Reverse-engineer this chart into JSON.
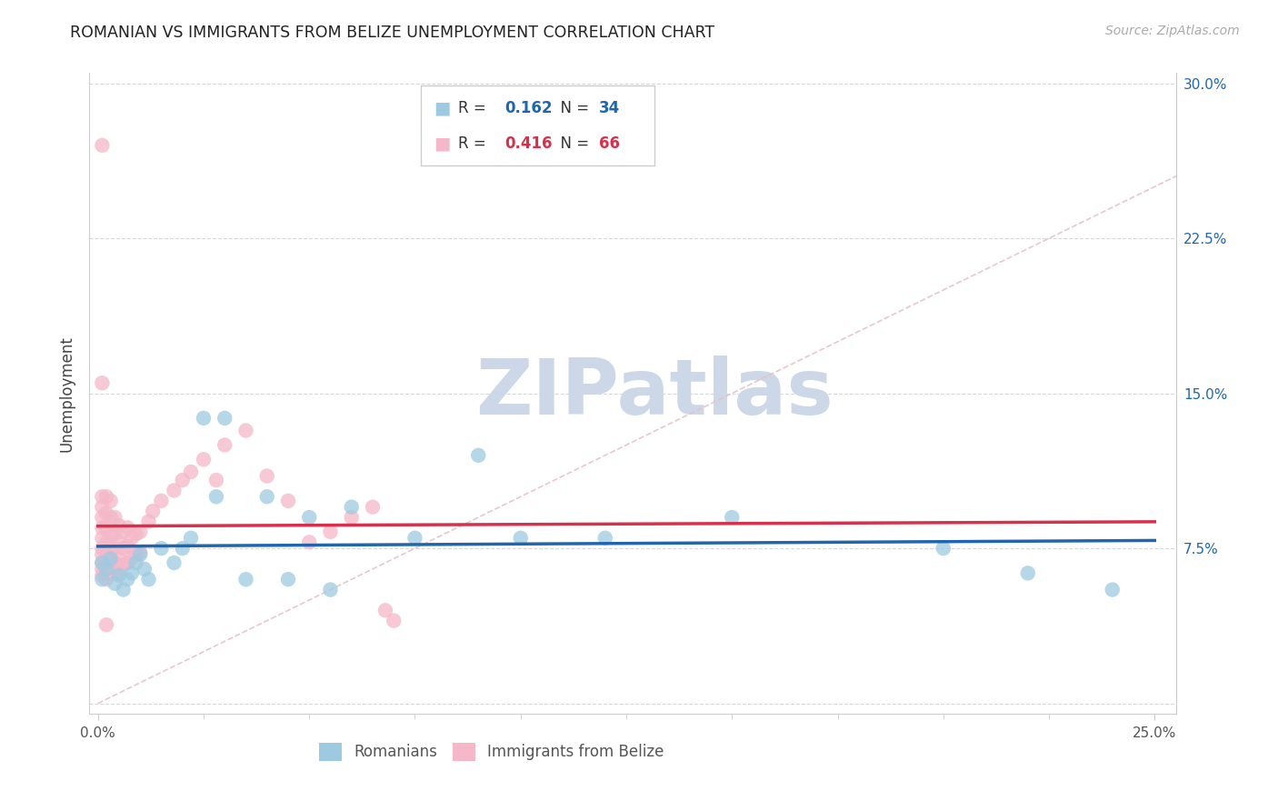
{
  "title": "ROMANIAN VS IMMIGRANTS FROM BELIZE UNEMPLOYMENT CORRELATION CHART",
  "source": "Source: ZipAtlas.com",
  "xlim": [
    -0.002,
    0.255
  ],
  "ylim": [
    -0.005,
    0.305
  ],
  "ylabel_ticks": [
    0.0,
    0.075,
    0.15,
    0.225,
    0.3
  ],
  "ylabel_labels": [
    "",
    "7.5%",
    "15.0%",
    "22.5%",
    "30.0%"
  ],
  "xtick_positions": [
    0.0,
    0.25
  ],
  "xtick_labels": [
    "0.0%",
    "25.0%"
  ],
  "legend_label1": "Romanians",
  "legend_label2": "Immigrants from Belize",
  "R1": "0.162",
  "N1": "34",
  "R2": "0.416",
  "N2": "66",
  "blue_scatter": "#9ecae1",
  "pink_scatter": "#f4b8c8",
  "blue_line": "#2166ac",
  "pink_line": "#d6304a",
  "diag_color": "#e8c0c8",
  "watermark_color": "#ccd8e8",
  "bg_color": "#ffffff",
  "grid_color": "#d8d8d8",
  "spine_color": "#cccccc",
  "title_color": "#222222",
  "source_color": "#aaaaaa",
  "tick_label_color": "#2166ac",
  "ylabel_text": "Unemployment",
  "romanians_x": [
    0.001,
    0.001,
    0.002,
    0.003,
    0.004,
    0.005,
    0.006,
    0.007,
    0.008,
    0.009,
    0.01,
    0.011,
    0.012,
    0.015,
    0.018,
    0.02,
    0.022,
    0.025,
    0.028,
    0.03,
    0.035,
    0.04,
    0.045,
    0.05,
    0.055,
    0.06,
    0.075,
    0.09,
    0.1,
    0.12,
    0.15,
    0.2,
    0.22,
    0.24
  ],
  "romanians_y": [
    0.068,
    0.06,
    0.065,
    0.07,
    0.058,
    0.062,
    0.055,
    0.06,
    0.063,
    0.068,
    0.072,
    0.065,
    0.06,
    0.075,
    0.068,
    0.075,
    0.08,
    0.138,
    0.1,
    0.138,
    0.06,
    0.1,
    0.06,
    0.09,
    0.055,
    0.095,
    0.08,
    0.12,
    0.08,
    0.08,
    0.09,
    0.075,
    0.063,
    0.055
  ],
  "belize_x": [
    0.001,
    0.001,
    0.001,
    0.001,
    0.001,
    0.001,
    0.001,
    0.001,
    0.001,
    0.001,
    0.002,
    0.002,
    0.002,
    0.002,
    0.002,
    0.002,
    0.002,
    0.002,
    0.003,
    0.003,
    0.003,
    0.003,
    0.003,
    0.003,
    0.004,
    0.004,
    0.004,
    0.004,
    0.004,
    0.005,
    0.005,
    0.005,
    0.005,
    0.006,
    0.006,
    0.006,
    0.007,
    0.007,
    0.007,
    0.008,
    0.008,
    0.009,
    0.009,
    0.01,
    0.01,
    0.012,
    0.013,
    0.015,
    0.018,
    0.02,
    0.022,
    0.025,
    0.028,
    0.03,
    0.035,
    0.04,
    0.045,
    0.05,
    0.055,
    0.06,
    0.065,
    0.068,
    0.07,
    0.001,
    0.001,
    0.002
  ],
  "belize_y": [
    0.062,
    0.065,
    0.068,
    0.072,
    0.075,
    0.08,
    0.085,
    0.09,
    0.095,
    0.1,
    0.06,
    0.063,
    0.067,
    0.072,
    0.078,
    0.085,
    0.092,
    0.1,
    0.065,
    0.07,
    0.075,
    0.082,
    0.09,
    0.098,
    0.063,
    0.068,
    0.075,
    0.082,
    0.09,
    0.065,
    0.07,
    0.078,
    0.086,
    0.067,
    0.075,
    0.083,
    0.068,
    0.076,
    0.085,
    0.07,
    0.08,
    0.072,
    0.082,
    0.073,
    0.083,
    0.088,
    0.093,
    0.098,
    0.103,
    0.108,
    0.112,
    0.118,
    0.108,
    0.125,
    0.132,
    0.11,
    0.098,
    0.078,
    0.083,
    0.09,
    0.095,
    0.045,
    0.04,
    0.155,
    0.27,
    0.038
  ]
}
